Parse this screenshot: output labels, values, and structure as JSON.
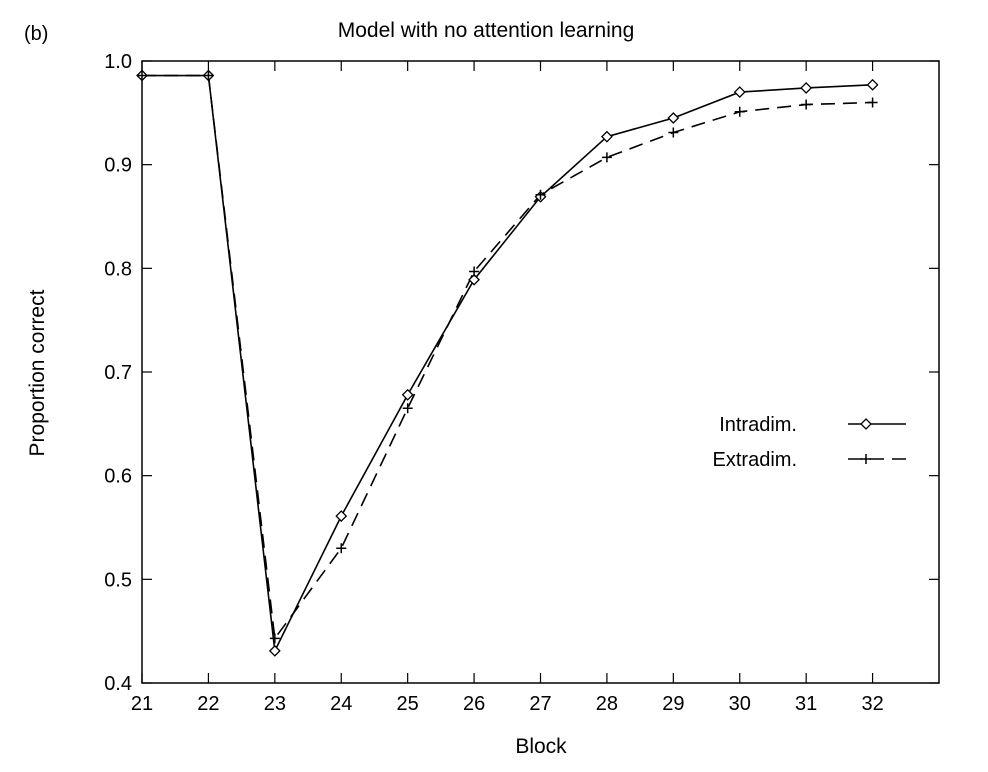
{
  "chart_data": {
    "type": "line",
    "panel_label": "(b)",
    "title": "Model with no attention learning",
    "xlabel": "Block",
    "ylabel": "Proportion correct",
    "xlim": [
      21,
      33
    ],
    "ylim": [
      0.4,
      1.0
    ],
    "x_ticks": [
      "21",
      "22",
      "23",
      "24",
      "25",
      "26",
      "27",
      "28",
      "29",
      "30",
      "31",
      "32"
    ],
    "y_ticks": [
      "0.4",
      "0.5",
      "0.6",
      "0.7",
      "0.8",
      "0.9",
      "1.0"
    ],
    "grid": false,
    "legend_position": "right",
    "series": [
      {
        "name": "Intradim.",
        "marker": "diamond",
        "line": "solid",
        "x": [
          21,
          22,
          23,
          24,
          25,
          26,
          27,
          28,
          29,
          30,
          31,
          32
        ],
        "values": [
          0.986,
          0.986,
          0.431,
          0.561,
          0.678,
          0.789,
          0.869,
          0.927,
          0.945,
          0.97,
          0.974,
          0.977
        ]
      },
      {
        "name": "Extradim.",
        "marker": "plus",
        "line": "dashed",
        "x": [
          21,
          22,
          23,
          24,
          25,
          26,
          27,
          28,
          29,
          30,
          31,
          32
        ],
        "values": [
          0.986,
          0.986,
          0.443,
          0.53,
          0.665,
          0.797,
          0.871,
          0.907,
          0.931,
          0.951,
          0.958,
          0.96
        ]
      }
    ]
  }
}
